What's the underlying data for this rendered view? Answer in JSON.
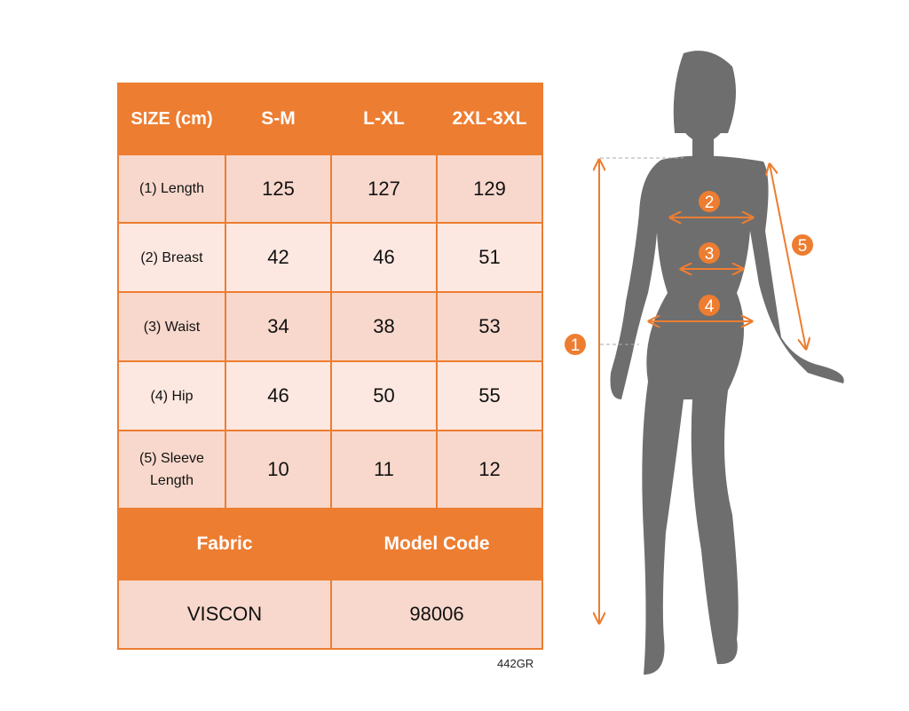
{
  "table": {
    "header": [
      "SIZE (cm)",
      "S-M",
      "L-XL",
      "2XL-3XL"
    ],
    "rows": [
      {
        "label": "(1) Length",
        "values": [
          "125",
          "127",
          "129"
        ]
      },
      {
        "label": "(2) Breast",
        "values": [
          "42",
          "46",
          "51"
        ]
      },
      {
        "label": "(3) Waist",
        "values": [
          "34",
          "38",
          "53"
        ]
      },
      {
        "label": "(4) Hip",
        "values": [
          "46",
          "50",
          "55"
        ]
      },
      {
        "label": "(5) Sleeve Length",
        "values": [
          "10",
          "11",
          "12"
        ]
      }
    ],
    "footer_headers": [
      "Fabric",
      "Model Code"
    ],
    "footer_values": [
      "VISCON",
      "98006"
    ]
  },
  "product_code": "442GR",
  "figure": {
    "markers": [
      "1",
      "2",
      "3",
      "4",
      "5"
    ]
  },
  "colors": {
    "accent": "#ED7D31",
    "cell_dark": "#F8D8CC",
    "cell_light": "#FCE8E1",
    "silhouette": "#6E6E6E"
  }
}
